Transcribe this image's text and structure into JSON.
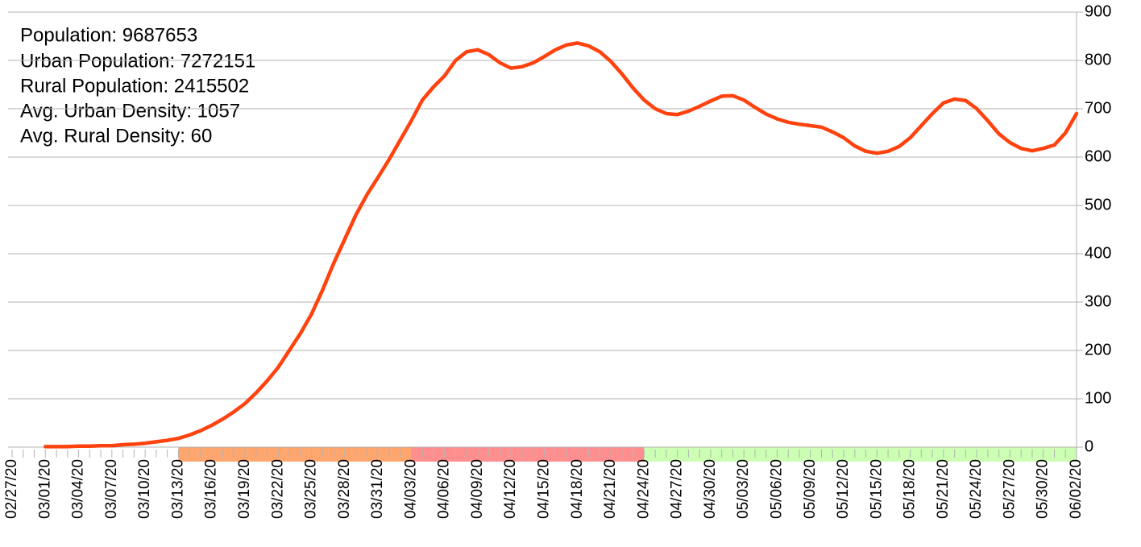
{
  "chart_data": {
    "type": "line",
    "annotations": [
      "Population: 9687653",
      "Urban Population: 7272151",
      "Rural Population: 2415502",
      "Avg. Urban Density: 1057",
      "Avg. Rural Density: 60"
    ],
    "categories": [
      "02/27/20",
      null,
      null,
      "03/01/20",
      null,
      null,
      "03/04/20",
      null,
      null,
      "03/07/20",
      null,
      null,
      "03/10/20",
      null,
      null,
      "03/13/20",
      null,
      null,
      "03/16/20",
      null,
      null,
      "03/19/20",
      null,
      null,
      "03/22/20",
      null,
      null,
      "03/25/20",
      null,
      null,
      "03/28/20",
      null,
      null,
      "03/31/20",
      null,
      null,
      "04/03/20",
      null,
      null,
      "04/06/20",
      null,
      null,
      "04/09/20",
      null,
      null,
      "04/12/20",
      null,
      null,
      "04/15/20",
      null,
      null,
      "04/18/20",
      null,
      null,
      "04/21/20",
      null,
      null,
      "04/24/20",
      null,
      null,
      "04/27/20",
      null,
      null,
      "04/30/20",
      null,
      null,
      "05/03/20",
      null,
      null,
      "05/06/20",
      null,
      null,
      "05/09/20",
      null,
      null,
      "05/12/20",
      null,
      null,
      "05/15/20",
      null,
      null,
      "05/18/20",
      null,
      null,
      "05/21/20",
      null,
      null,
      "05/24/20",
      null,
      null,
      "05/27/20",
      null,
      null,
      "05/30/20",
      null,
      null,
      "06/02/20"
    ],
    "series": [
      {
        "color": "#ff420e",
        "values": [
          null,
          null,
          null,
          1,
          1,
          1,
          2,
          2,
          3,
          3,
          5,
          6,
          8,
          11,
          14,
          18,
          25,
          34,
          45,
          58,
          73,
          90,
          112,
          137,
          165,
          200,
          235,
          275,
          325,
          380,
          430,
          480,
          522,
          558,
          595,
          635,
          675,
          718,
          745,
          768,
          800,
          818,
          822,
          812,
          795,
          784,
          787,
          795,
          808,
          822,
          832,
          836,
          830,
          818,
          798,
          772,
          743,
          718,
          700,
          690,
          688,
          695,
          705,
          716,
          726,
          727,
          718,
          703,
          689,
          679,
          672,
          668,
          665,
          662,
          652,
          640,
          623,
          612,
          608,
          612,
          622,
          640,
          665,
          690,
          712,
          720,
          717,
          700,
          675,
          648,
          630,
          618,
          613,
          618,
          625,
          650,
          690
        ]
      }
    ],
    "bands": [
      {
        "from": "03/13/20",
        "to": "04/03/20",
        "color": "#ffa66e"
      },
      {
        "from": "04/03/20",
        "to": "04/24/20",
        "color": "#ff8f8f"
      },
      {
        "from": "04/24/20",
        "to": "06/02/20",
        "color": "#ccffb3"
      }
    ],
    "ylim": [
      0,
      900
    ],
    "yticks": [
      0,
      100,
      200,
      300,
      400,
      500,
      600,
      700,
      800,
      900
    ],
    "grid": true
  }
}
